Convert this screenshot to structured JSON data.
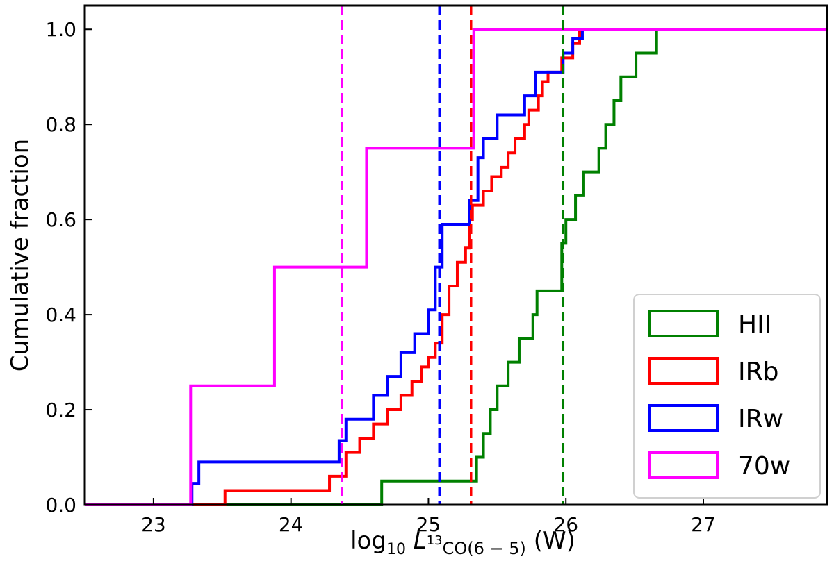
{
  "chart_data": {
    "type": "step-cdf",
    "title": "",
    "xlabel": {
      "prefix": "log",
      "prefix_sub": "10",
      "var": "L",
      "sup": "13",
      "sub_rest": "CO(6 − 5)",
      "unit": "(W)"
    },
    "ylabel": "Cumulative fraction",
    "xlim": [
      22.5,
      27.9
    ],
    "ylim": [
      0.0,
      1.05
    ],
    "xticks": [
      23,
      24,
      25,
      26,
      27
    ],
    "xtick_labels": [
      "23",
      "24",
      "25",
      "26",
      "27"
    ],
    "yticks": [
      0.0,
      0.2,
      0.4,
      0.6,
      0.8,
      1.0
    ],
    "ytick_labels": [
      "0.0",
      "0.2",
      "0.4",
      "0.6",
      "0.8",
      "1.0"
    ],
    "legend_position": "bottom-right",
    "series": [
      {
        "name": "HII",
        "color": "#008000",
        "median": 25.98,
        "x": [
          24.66,
          25.35,
          25.4,
          25.45,
          25.5,
          25.58,
          25.66,
          25.76,
          25.79,
          25.97,
          26.0,
          26.07,
          26.13,
          26.24,
          26.29,
          26.35,
          26.4,
          26.51,
          26.66,
          26.9,
          27.45
        ],
        "y": [
          0.05,
          0.1,
          0.15,
          0.2,
          0.25,
          0.3,
          0.35,
          0.4,
          0.45,
          0.55,
          0.6,
          0.65,
          0.7,
          0.75,
          0.8,
          0.85,
          0.9,
          0.95,
          1.0,
          1.0,
          1.0
        ]
      },
      {
        "name": "IRb",
        "color": "#ff0000",
        "median": 25.31,
        "x": [
          23.52,
          24.28,
          24.4,
          24.5,
          24.6,
          24.7,
          24.8,
          24.88,
          24.95,
          25.0,
          25.05,
          25.1,
          25.15,
          25.21,
          25.27,
          25.3,
          25.32,
          25.4,
          25.46,
          25.53,
          25.58,
          25.63,
          25.7,
          25.73,
          25.8,
          25.83,
          25.87,
          25.97,
          26.05,
          26.1,
          26.15
        ],
        "y": [
          0.03,
          0.06,
          0.11,
          0.14,
          0.17,
          0.2,
          0.23,
          0.26,
          0.29,
          0.31,
          0.34,
          0.4,
          0.46,
          0.51,
          0.54,
          0.6,
          0.63,
          0.66,
          0.69,
          0.71,
          0.74,
          0.77,
          0.8,
          0.83,
          0.86,
          0.89,
          0.91,
          0.94,
          0.97,
          1.0,
          1.0
        ]
      },
      {
        "name": "IRw",
        "color": "#0000ff",
        "median": 25.08,
        "x": [
          23.28,
          23.33,
          24.35,
          24.4,
          24.6,
          24.7,
          24.8,
          24.9,
          25.0,
          25.05,
          25.1,
          25.3,
          25.36,
          25.4,
          25.5,
          25.7,
          25.78,
          25.86,
          25.95,
          25.98,
          26.05,
          26.12
        ],
        "y": [
          0.045,
          0.09,
          0.135,
          0.18,
          0.23,
          0.27,
          0.32,
          0.36,
          0.41,
          0.5,
          0.59,
          0.64,
          0.73,
          0.77,
          0.82,
          0.86,
          0.91,
          0.91,
          0.91,
          0.95,
          0.98,
          1.0
        ]
      },
      {
        "name": "70w",
        "color": "#ff00ff",
        "median": 24.37,
        "x": [
          23.27,
          23.88,
          24.55,
          25.33
        ],
        "y": [
          0.25,
          0.5,
          0.75,
          1.0
        ]
      }
    ]
  }
}
